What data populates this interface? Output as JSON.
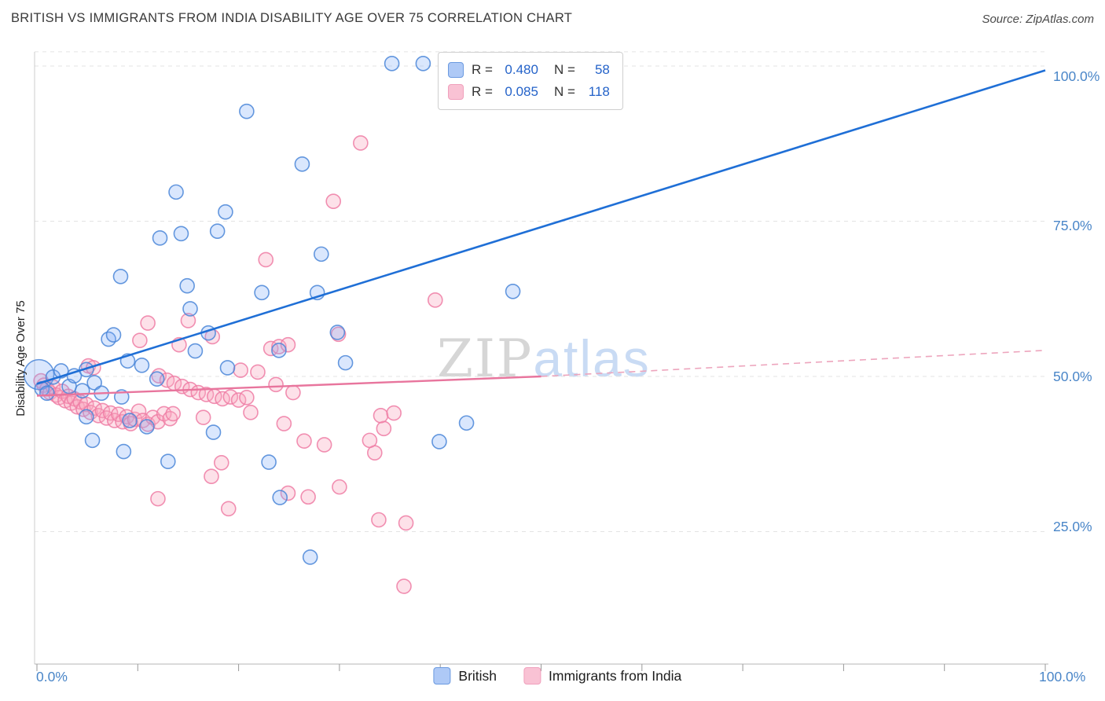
{
  "title": "BRITISH VS IMMIGRANTS FROM INDIA DISABILITY AGE OVER 75 CORRELATION CHART",
  "source": "Source: ZipAtlas.com",
  "y_axis_label": "Disability Age Over 75",
  "watermark": {
    "part1": "ZIP",
    "part2": "atlas"
  },
  "legend_box": {
    "rows": [
      {
        "series": "British",
        "r_label": "R =",
        "r_value": "0.480",
        "n_label": "N =",
        "n_value": "58"
      },
      {
        "series": "Immigrants from India",
        "r_label": "R =",
        "r_value": "0.085",
        "n_label": "N =",
        "n_value": "118"
      }
    ]
  },
  "axis": {
    "x_min_label": "0.0%",
    "x_max_label": "100.0%",
    "y_tick_labels": [
      "100.0%",
      "75.0%",
      "50.0%",
      "25.0%"
    ]
  },
  "bottom_legend": [
    {
      "label": "British"
    },
    {
      "label": "Immigrants from India"
    }
  ],
  "colors": {
    "british_fill": "#7baaf7",
    "british_stroke": "#4a86d8",
    "india_fill": "#f8a8c0",
    "india_stroke": "#ee7ca4",
    "british_trend": "#1f6fd6",
    "india_trend": "#e8759d",
    "india_trend_dashed": "#eda5bd",
    "tick_label": "#4a86c8",
    "gridline": "#e3e3e3"
  },
  "chart_data": {
    "type": "scatter",
    "title": "BRITISH VS IMMIGRANTS FROM INDIA DISABILITY AGE OVER 75 CORRELATION CHART",
    "xlabel": "",
    "ylabel": "Disability Age Over 75",
    "xlim": [
      0,
      100
    ],
    "ylim": [
      0,
      102
    ],
    "grid": "horizontal-dashed",
    "legend_position": "top-center and bottom-center",
    "y_gridlines": [
      102.3,
      100,
      75,
      50,
      25
    ],
    "x_tick_count": 11,
    "series": [
      {
        "name": "Immigrants from India",
        "R": 0.085,
        "N": 118,
        "fill": "#f8a8c0",
        "fill_opacity": 0.35,
        "stroke": "#ee7ca4",
        "points": [
          [
            0.4,
            49.3
          ],
          [
            0.7,
            48.6
          ],
          [
            1.0,
            48.0
          ],
          [
            1.3,
            47.4
          ],
          [
            1.6,
            48.3
          ],
          [
            1.9,
            47.0
          ],
          [
            2.2,
            46.6
          ],
          [
            2.5,
            47.6
          ],
          [
            2.8,
            46.1
          ],
          [
            3.1,
            46.8
          ],
          [
            3.4,
            45.7
          ],
          [
            3.7,
            46.4
          ],
          [
            4.0,
            45.1
          ],
          [
            4.3,
            45.9
          ],
          [
            4.6,
            44.7
          ],
          [
            4.9,
            45.5
          ],
          [
            5.3,
            44.2
          ],
          [
            5.7,
            44.9
          ],
          [
            6.1,
            43.7
          ],
          [
            6.5,
            44.5
          ],
          [
            6.9,
            43.3
          ],
          [
            7.3,
            44.1
          ],
          [
            7.7,
            42.9
          ],
          [
            8.1,
            43.9
          ],
          [
            8.5,
            42.7
          ],
          [
            8.9,
            43.5
          ],
          [
            9.3,
            42.4
          ],
          [
            9.7,
            43.1
          ],
          [
            10.1,
            44.4
          ],
          [
            10.5,
            42.9
          ],
          [
            11.0,
            42.3
          ],
          [
            11.5,
            43.4
          ],
          [
            12.0,
            42.7
          ],
          [
            12.6,
            44.0
          ],
          [
            13.2,
            43.2
          ],
          [
            5.1,
            51.7
          ],
          [
            5.6,
            51.4
          ],
          [
            12.1,
            50.1
          ],
          [
            12.9,
            49.4
          ],
          [
            13.6,
            48.9
          ],
          [
            14.4,
            48.4
          ],
          [
            15.2,
            47.9
          ],
          [
            16.0,
            47.4
          ],
          [
            16.8,
            47.1
          ],
          [
            17.6,
            46.8
          ],
          [
            18.4,
            46.4
          ],
          [
            19.2,
            46.7
          ],
          [
            20.0,
            46.2
          ],
          [
            20.8,
            46.6
          ],
          [
            11.0,
            58.6
          ],
          [
            15.0,
            59.0
          ],
          [
            14.1,
            55.1
          ],
          [
            17.4,
            56.4
          ],
          [
            10.2,
            55.8
          ],
          [
            20.2,
            51.0
          ],
          [
            21.9,
            50.7
          ],
          [
            23.2,
            54.5
          ],
          [
            24.0,
            54.8
          ],
          [
            24.9,
            55.1
          ],
          [
            23.7,
            48.7
          ],
          [
            25.4,
            47.4
          ],
          [
            32.1,
            87.6
          ],
          [
            29.4,
            78.2
          ],
          [
            22.7,
            68.8
          ],
          [
            39.5,
            62.3
          ],
          [
            29.9,
            56.8
          ],
          [
            26.5,
            39.6
          ],
          [
            28.5,
            39.0
          ],
          [
            24.5,
            42.4
          ],
          [
            16.5,
            43.4
          ],
          [
            13.5,
            44.0
          ],
          [
            21.2,
            44.2
          ],
          [
            30.0,
            32.2
          ],
          [
            24.9,
            31.2
          ],
          [
            26.9,
            30.6
          ],
          [
            12.0,
            30.3
          ],
          [
            19.0,
            28.7
          ],
          [
            17.3,
            33.9
          ],
          [
            18.3,
            36.1
          ],
          [
            33.5,
            37.7
          ],
          [
            33.0,
            39.7
          ],
          [
            34.4,
            41.6
          ],
          [
            34.1,
            43.7
          ],
          [
            35.4,
            44.1
          ],
          [
            33.9,
            26.9
          ],
          [
            36.6,
            26.4
          ],
          [
            36.4,
            16.2
          ]
        ]
      },
      {
        "name": "British",
        "R": 0.48,
        "N": 58,
        "fill": "#7baaf7",
        "fill_opacity": 0.28,
        "stroke": "#4a86d8",
        "points": [
          [
            0.2,
            50.3,
            19
          ],
          [
            0.5,
            48.0
          ],
          [
            1.0,
            47.3
          ],
          [
            1.6,
            49.9
          ],
          [
            2.4,
            50.9
          ],
          [
            3.2,
            48.4
          ],
          [
            3.7,
            50.1
          ],
          [
            4.5,
            47.7
          ],
          [
            4.9,
            51.1
          ],
          [
            5.7,
            49.0
          ],
          [
            6.4,
            47.3
          ],
          [
            8.4,
            46.7
          ],
          [
            35.2,
            100.4
          ],
          [
            38.3,
            100.4
          ],
          [
            43.5,
            100.3
          ],
          [
            51.7,
            100.4
          ],
          [
            20.8,
            92.7
          ],
          [
            26.3,
            84.2
          ],
          [
            13.8,
            79.7
          ],
          [
            18.7,
            76.5
          ],
          [
            14.3,
            73.0
          ],
          [
            17.9,
            73.4
          ],
          [
            12.2,
            72.3
          ],
          [
            28.2,
            69.7
          ],
          [
            8.3,
            66.1
          ],
          [
            22.3,
            63.5
          ],
          [
            14.9,
            64.6
          ],
          [
            27.8,
            63.5
          ],
          [
            47.2,
            63.7
          ],
          [
            15.2,
            60.9
          ],
          [
            7.1,
            56.0
          ],
          [
            7.6,
            56.7
          ],
          [
            29.8,
            57.1
          ],
          [
            17.0,
            57.0
          ],
          [
            15.7,
            54.1
          ],
          [
            24.0,
            54.2
          ],
          [
            9.0,
            52.5
          ],
          [
            10.4,
            51.8
          ],
          [
            30.6,
            52.2
          ],
          [
            18.9,
            51.4
          ],
          [
            11.9,
            49.6
          ],
          [
            4.9,
            43.5
          ],
          [
            9.2,
            42.9
          ],
          [
            10.9,
            41.9
          ],
          [
            17.5,
            41.0
          ],
          [
            42.6,
            42.5
          ],
          [
            5.5,
            39.7
          ],
          [
            13.0,
            36.3
          ],
          [
            23.0,
            36.2
          ],
          [
            39.9,
            39.5
          ],
          [
            8.6,
            37.9
          ],
          [
            24.1,
            30.5
          ],
          [
            27.1,
            20.9
          ]
        ]
      }
    ],
    "trend_lines": [
      {
        "series": "British",
        "x1": 0,
        "y1": 48.8,
        "x2": 100,
        "y2": 99.3,
        "style": "solid",
        "color": "#1f6fd6",
        "width": 2.6
      },
      {
        "series": "Immigrants from India",
        "x1": 0,
        "y1": 46.9,
        "x2": 50,
        "y2": 50.0,
        "style": "solid",
        "color": "#e8759d",
        "width": 2.4
      },
      {
        "series": "Immigrants from India",
        "x1": 50,
        "y1": 50.0,
        "x2": 100,
        "y2": 54.2,
        "style": "dashed",
        "color": "#eda5bd",
        "width": 1.6
      }
    ]
  }
}
